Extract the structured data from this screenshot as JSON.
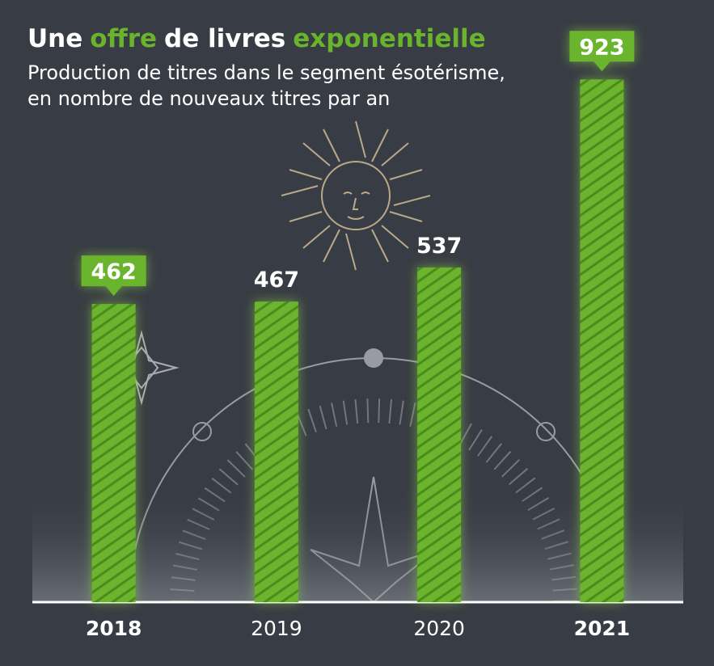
{
  "chart_data": {
    "type": "bar",
    "title": [
      {
        "text": "Une",
        "highlight": false
      },
      {
        "text": "offre",
        "highlight": true
      },
      {
        "text": "de livres",
        "highlight": false
      },
      {
        "text": "exponentielle",
        "highlight": true
      }
    ],
    "subtitle": [
      "Production de titres dans le segment ésotérisme,",
      "en nombre de nouveaux titres par an"
    ],
    "categories": [
      "2018",
      "2019",
      "2020",
      "2021"
    ],
    "values": [
      462,
      467,
      537,
      923
    ],
    "highlight": [
      true,
      false,
      false,
      true
    ],
    "color": "#6ab42d",
    "ylim": [
      -150,
      950
    ]
  }
}
